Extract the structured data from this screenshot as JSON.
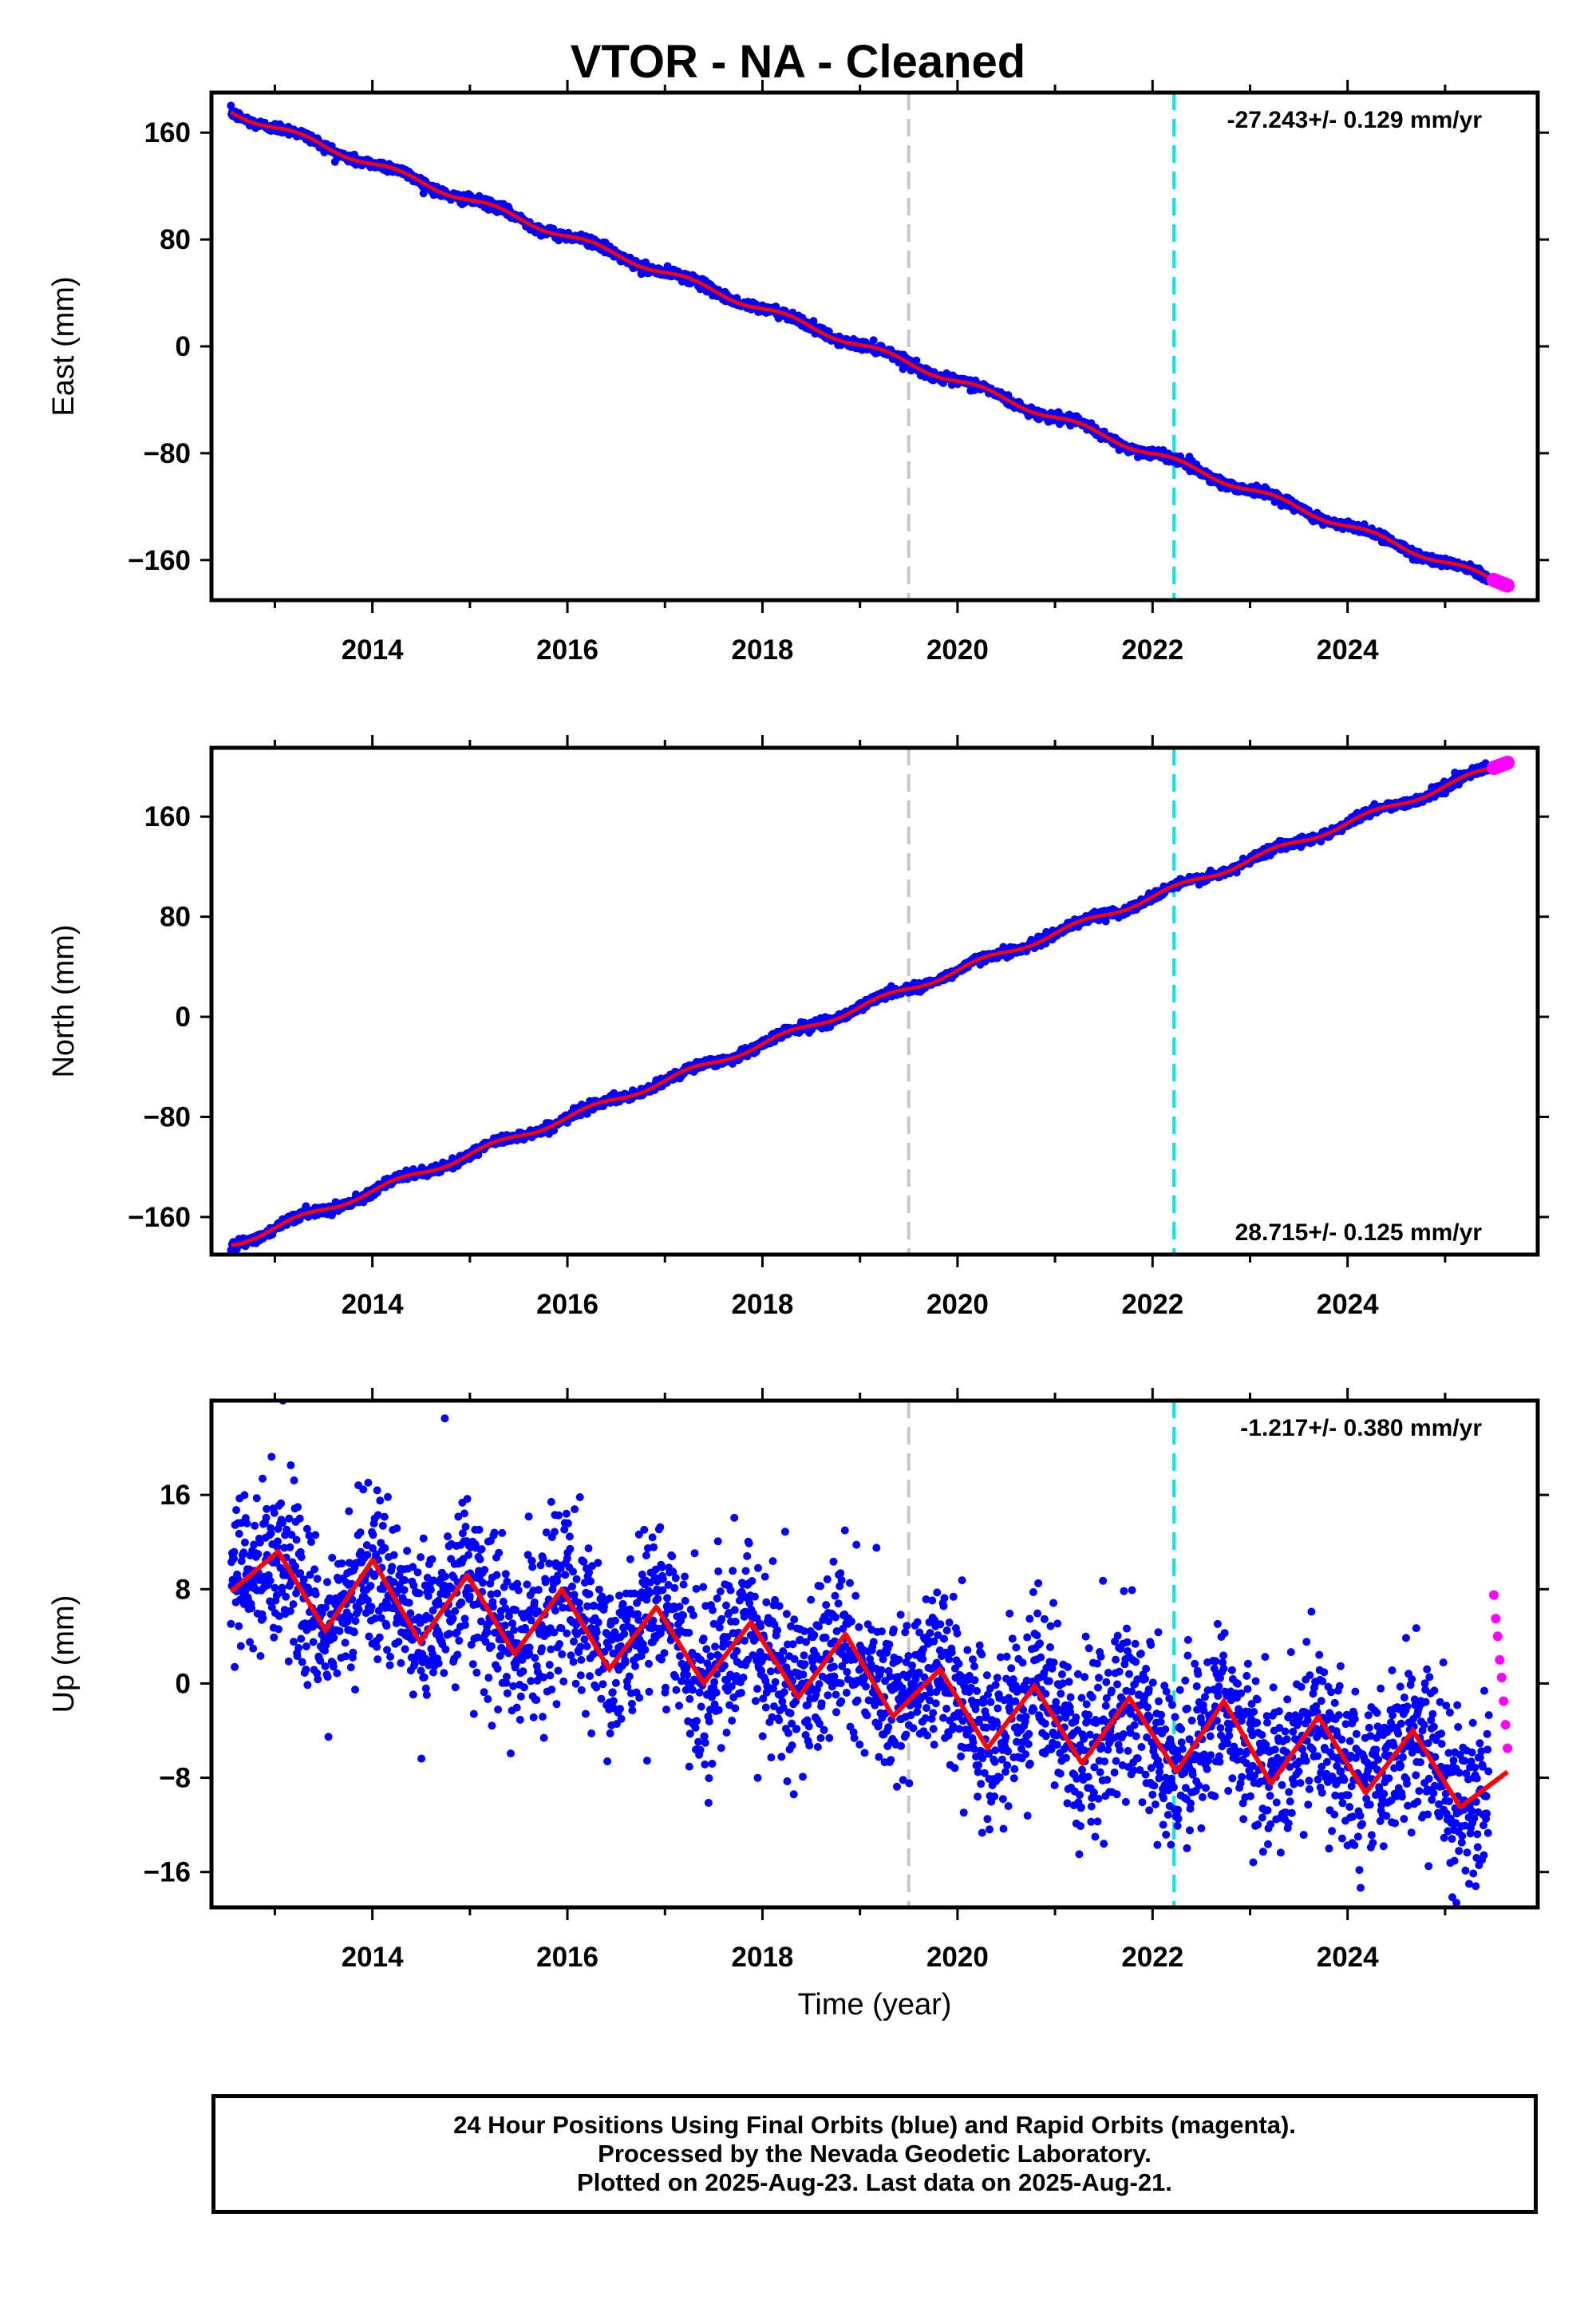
{
  "title": "VTOR  - NA - Cleaned",
  "footer": {
    "line1": "24 Hour Positions Using Final Orbits (blue) and Rapid Orbits (magenta).",
    "line2": "Processed by the Nevada Geodetic Laboratory.",
    "line3": "Plotted on 2025-Aug-23. Last data on 2025-Aug-21."
  },
  "colors": {
    "final_orbits": "#0000ff",
    "rapid_orbits": "#ff00ff",
    "model_fit": "#ff0000",
    "event_gray": "#c8c8c8",
    "event_cyan": "#00e5e5"
  },
  "chart_data": [
    {
      "type": "scatter",
      "panel": "east",
      "ylabel": "East (mm)",
      "xlabel": "",
      "xlim": [
        2012.35,
        2025.95
      ],
      "ylim": [
        -190,
        190
      ],
      "yticks": [
        -160,
        -80,
        0,
        80,
        160
      ],
      "xticks": [
        2014,
        2016,
        2018,
        2020,
        2022,
        2024
      ],
      "rate_text": "-27.243+/- 0.129 mm/yr",
      "rate_position": "top-right",
      "rate": -27.243,
      "event_lines": [
        {
          "x": 2019.5,
          "color": "gray"
        },
        {
          "x": 2022.22,
          "color": "cyan"
        }
      ],
      "series": [
        {
          "name": "Final Orbits",
          "color": "blue",
          "start": 2012.55,
          "end": 2025.45,
          "start_value": 176,
          "end_value": -175
        },
        {
          "name": "Rapid Orbits",
          "color": "magenta",
          "start": 2025.5,
          "end": 2025.64,
          "start_value": -175,
          "end_value": -179
        },
        {
          "name": "Model fit",
          "color": "red",
          "start": 2012.55,
          "end": 2025.64,
          "start_value": 176,
          "end_value": -179
        }
      ]
    },
    {
      "type": "scatter",
      "panel": "north",
      "ylabel": "North (mm)",
      "xlabel": "",
      "xlim": [
        2012.35,
        2025.95
      ],
      "ylim": [
        -190,
        215
      ],
      "yticks": [
        -160,
        -80,
        0,
        80,
        160
      ],
      "xticks": [
        2014,
        2016,
        2018,
        2020,
        2022,
        2024
      ],
      "rate_text": "28.715+/- 0.125 mm/yr",
      "rate_position": "bottom-right",
      "rate": 28.715,
      "event_lines": [
        {
          "x": 2019.5,
          "color": "gray"
        },
        {
          "x": 2022.22,
          "color": "cyan"
        }
      ],
      "series": [
        {
          "name": "Final Orbits",
          "color": "blue",
          "start": 2012.55,
          "end": 2025.45,
          "start_value": -182,
          "end_value": 198
        },
        {
          "name": "Rapid Orbits",
          "color": "magenta",
          "start": 2025.5,
          "end": 2025.64,
          "start_value": 199,
          "end_value": 203
        },
        {
          "name": "Model fit",
          "color": "red",
          "start": 2012.55,
          "end": 2025.64,
          "start_value": -182,
          "end_value": 203
        }
      ]
    },
    {
      "type": "scatter",
      "panel": "up",
      "ylabel": "Up (mm)",
      "xlabel": "Time (year)",
      "xlim": [
        2012.35,
        2025.95
      ],
      "ylim": [
        -19,
        24
      ],
      "yticks": [
        -16,
        -8,
        0,
        8,
        16
      ],
      "xticks": [
        2014,
        2016,
        2018,
        2020,
        2022,
        2024
      ],
      "rate_text": "-1.217+/- 0.380 mm/yr",
      "rate_position": "top-right",
      "rate": -1.217,
      "seasonal_amplitude_mm": 4,
      "scatter_sd_mm": 3.5,
      "event_lines": [
        {
          "x": 2019.5,
          "color": "gray"
        },
        {
          "x": 2022.22,
          "color": "cyan"
        }
      ],
      "series": [
        {
          "name": "Final Orbits",
          "color": "blue",
          "start": 2012.55,
          "end": 2025.45,
          "start_value": 8,
          "end_value": -9
        },
        {
          "name": "Rapid Orbits",
          "color": "magenta",
          "start": 2025.5,
          "end": 2025.64,
          "values": [
            7.5,
            5.5,
            4,
            2,
            0.5,
            -1.5,
            -3.5,
            -5.5
          ]
        },
        {
          "name": "Model fit",
          "color": "red",
          "start": 2012.55,
          "end": 2025.64,
          "values": [
            7.8,
            11.2,
            4.5,
            10.5,
            3.5,
            9.2,
            2.5,
            8.0,
            1.2,
            6.5,
            0,
            5.2,
            -1.2,
            4.2,
            -2.8,
            1.2,
            -5.5,
            -0.2,
            -6.8,
            -1.2,
            -7.5,
            -1.5,
            -8.5,
            -2.8,
            -9.3,
            -4,
            -10.5,
            -7.5
          ]
        }
      ]
    }
  ]
}
